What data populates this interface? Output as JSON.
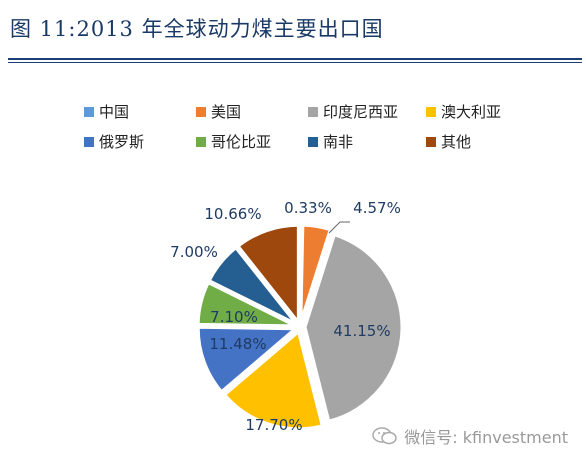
{
  "title": "图 11:2013 年全球动力煤主要出口国",
  "watermark": {
    "text": "微信号: kfinvestment",
    "icon": "wechat-icon"
  },
  "chart_data": {
    "type": "pie",
    "title": "",
    "legend_position": "top",
    "slices": [
      {
        "label": "中国",
        "value": 0.33,
        "value_label": "0.33%",
        "color": "#5b9bd5"
      },
      {
        "label": "美国",
        "value": 4.57,
        "value_label": "4.57%",
        "color": "#ed7d31"
      },
      {
        "label": "印度尼西亚",
        "value": 41.15,
        "value_label": "41.15%",
        "color": "#a5a5a5"
      },
      {
        "label": "澳大利亚",
        "value": 17.7,
        "value_label": "17.70%",
        "color": "#ffc000"
      },
      {
        "label": "俄罗斯",
        "value": 11.48,
        "value_label": "11.48%",
        "color": "#4472c4"
      },
      {
        "label": "哥伦比亚",
        "value": 7.1,
        "value_label": "7.10%",
        "color": "#70ad47"
      },
      {
        "label": "南非",
        "value": 7.0,
        "value_label": "7.00%",
        "color": "#255e91"
      },
      {
        "label": "其他",
        "value": 10.66,
        "value_label": "10.66%",
        "color": "#9e480e"
      }
    ]
  }
}
